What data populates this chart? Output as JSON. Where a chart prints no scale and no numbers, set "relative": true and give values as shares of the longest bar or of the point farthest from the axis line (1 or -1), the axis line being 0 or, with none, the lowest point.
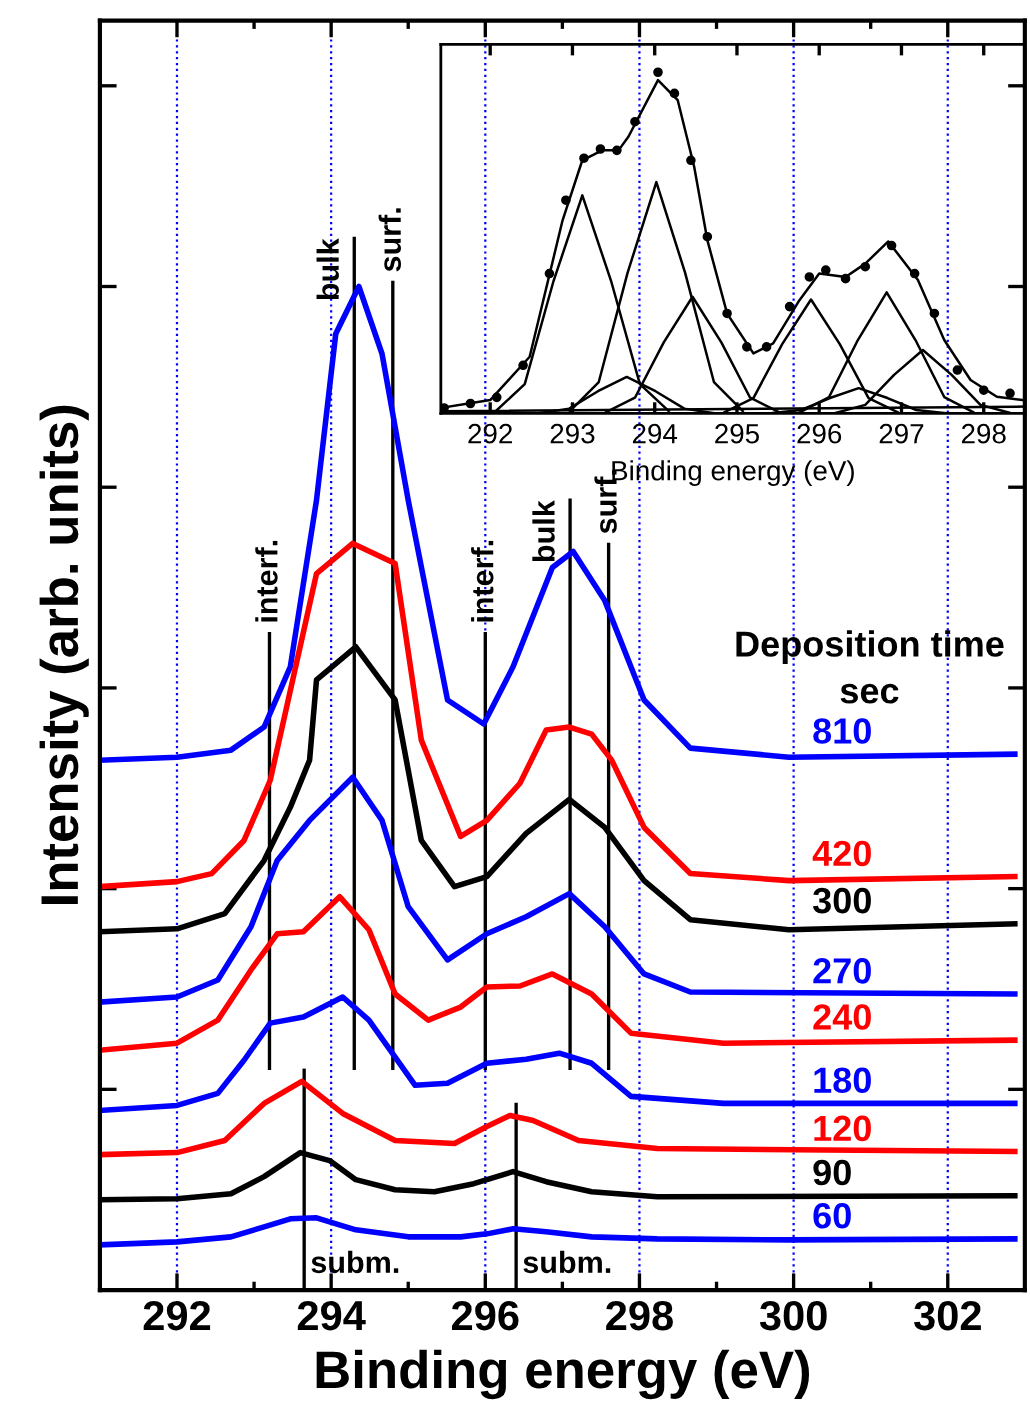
{
  "chart_data": [
    {
      "type": "line",
      "relative": true,
      "xlabel": "Binding energy (eV)",
      "ylabel": "Intensity (arb. units)",
      "xlim": [
        291,
        303
      ],
      "xticks": [
        292,
        {
          "value": 293,
          "label": null
        },
        294,
        {
          "value": 295,
          "label": null
        },
        296,
        {
          "value": 297,
          "label": null
        },
        298,
        {
          "value": 299,
          "label": null
        },
        300,
        {
          "value": 301,
          "label": null
        },
        302
      ],
      "grid": "x",
      "tick_labels": "x",
      "annotations": [
        "Deposition time\nsec"
      ],
      "ref_lines": [
        {
          "axis": "x",
          "value": 293.2,
          "label": "interf.",
          "color": "#000000"
        },
        {
          "axis": "x",
          "value": 294.3,
          "label": "bulk",
          "color": "#000000"
        },
        {
          "axis": "x",
          "value": 294.8,
          "label": "surf.",
          "color": "#000000"
        },
        {
          "axis": "x",
          "value": 296.0,
          "label": "interf.",
          "color": "#000000"
        },
        {
          "axis": "x",
          "value": 297.1,
          "label": "bulk",
          "color": "#000000"
        },
        {
          "axis": "x",
          "value": 297.6,
          "label": "surf.",
          "color": "#000000"
        },
        {
          "axis": "x",
          "value": 293.65,
          "label": "subm.",
          "color": "#000000"
        },
        {
          "axis": "x",
          "value": 296.4,
          "label": "subm.",
          "color": "#000000"
        }
      ],
      "series": [
        {
          "name": "810",
          "color": "#0000ff",
          "x": [
            291.0,
            292.0,
            292.7,
            293.13,
            293.47,
            293.81,
            294.06,
            294.36,
            294.66,
            295.0,
            295.51,
            295.98,
            296.36,
            296.87,
            297.14,
            297.55,
            298.06,
            298.66,
            299.94,
            302.87
          ],
          "values": [
            0.528,
            0.531,
            0.538,
            0.561,
            0.621,
            0.787,
            0.953,
            1.0,
            0.933,
            0.787,
            0.588,
            0.564,
            0.621,
            0.72,
            0.736,
            0.687,
            0.588,
            0.54,
            0.531,
            0.534
          ]
        },
        {
          "name": "420",
          "color": "#ff0000",
          "x": [
            291.0,
            292.0,
            292.45,
            292.87,
            293.21,
            293.81,
            294.28,
            294.83,
            295.17,
            295.68,
            296.02,
            296.45,
            296.79,
            297.09,
            297.38,
            297.64,
            298.06,
            298.66,
            299.94,
            302.87
          ],
          "values": [
            0.402,
            0.407,
            0.415,
            0.448,
            0.508,
            0.714,
            0.744,
            0.724,
            0.548,
            0.452,
            0.468,
            0.505,
            0.558,
            0.561,
            0.554,
            0.528,
            0.461,
            0.415,
            0.408,
            0.412
          ]
        },
        {
          "name": "300",
          "color": "#000000",
          "x": [
            291.0,
            292.0,
            292.62,
            293.13,
            293.47,
            293.72,
            293.81,
            294.32,
            294.83,
            295.17,
            295.6,
            296.02,
            296.53,
            297.09,
            297.55,
            298.06,
            298.66,
            299.94,
            302.87
          ],
          "values": [
            0.357,
            0.36,
            0.375,
            0.428,
            0.481,
            0.528,
            0.608,
            0.641,
            0.588,
            0.448,
            0.402,
            0.412,
            0.455,
            0.489,
            0.461,
            0.408,
            0.369,
            0.359,
            0.365
          ]
        },
        {
          "name": "270",
          "color": "#0000ff",
          "x": [
            291.0,
            292.0,
            292.53,
            292.96,
            293.3,
            293.72,
            294.28,
            294.66,
            295.0,
            295.51,
            296.02,
            296.53,
            297.09,
            297.55,
            298.06,
            298.66,
            302.87
          ],
          "values": [
            0.287,
            0.292,
            0.309,
            0.362,
            0.428,
            0.468,
            0.511,
            0.468,
            0.382,
            0.329,
            0.355,
            0.372,
            0.395,
            0.362,
            0.315,
            0.297,
            0.295
          ]
        },
        {
          "name": "240",
          "color": "#ff0000",
          "x": [
            291.0,
            292.0,
            292.53,
            292.96,
            293.3,
            293.64,
            294.11,
            294.49,
            294.83,
            295.26,
            295.68,
            296.02,
            296.45,
            296.87,
            297.38,
            297.89,
            299.09,
            302.87
          ],
          "values": [
            0.239,
            0.246,
            0.269,
            0.319,
            0.355,
            0.357,
            0.392,
            0.359,
            0.295,
            0.269,
            0.282,
            0.302,
            0.303,
            0.315,
            0.295,
            0.256,
            0.246,
            0.249
          ]
        },
        {
          "name": "180",
          "color": "#0000ff",
          "x": [
            291.0,
            292.0,
            292.53,
            292.87,
            293.21,
            293.64,
            294.15,
            294.49,
            295.09,
            295.51,
            296.02,
            296.53,
            296.96,
            297.38,
            297.89,
            299.09,
            302.87
          ],
          "values": [
            0.179,
            0.184,
            0.196,
            0.229,
            0.266,
            0.272,
            0.292,
            0.269,
            0.204,
            0.206,
            0.226,
            0.23,
            0.236,
            0.226,
            0.193,
            0.186,
            0.186
          ]
        },
        {
          "name": "120",
          "color": "#ff0000",
          "x": [
            291.0,
            292.0,
            292.62,
            293.13,
            293.62,
            294.15,
            294.83,
            295.6,
            296.02,
            296.32,
            296.62,
            297.21,
            298.23,
            302.87
          ],
          "values": [
            0.135,
            0.137,
            0.149,
            0.186,
            0.208,
            0.176,
            0.149,
            0.146,
            0.163,
            0.174,
            0.169,
            0.149,
            0.141,
            0.138
          ]
        },
        {
          "name": "90",
          "color": "#000000",
          "x": [
            291.0,
            292.0,
            292.7,
            293.13,
            293.6,
            293.98,
            294.32,
            294.83,
            295.34,
            295.85,
            296.36,
            296.79,
            297.38,
            298.23,
            302.87
          ],
          "values": [
            0.09,
            0.091,
            0.096,
            0.113,
            0.137,
            0.129,
            0.11,
            0.1,
            0.098,
            0.106,
            0.118,
            0.108,
            0.098,
            0.093,
            0.094
          ]
        },
        {
          "name": "60",
          "color": "#0000ff",
          "x": [
            291.0,
            292.0,
            292.7,
            293.13,
            293.47,
            293.81,
            294.32,
            295.0,
            295.68,
            296.02,
            296.36,
            296.79,
            297.38,
            298.23,
            299.94,
            302.87
          ],
          "values": [
            0.045,
            0.048,
            0.053,
            0.063,
            0.071,
            0.072,
            0.06,
            0.053,
            0.053,
            0.056,
            0.061,
            0.058,
            0.053,
            0.051,
            0.05,
            0.051
          ]
        }
      ]
    },
    {
      "type": "line",
      "relative": true,
      "xlabel": "Binding energy (eV)",
      "xlim": [
        291.4,
        298.5
      ],
      "xticks": [
        292,
        293,
        294,
        295,
        296,
        297,
        298
      ],
      "tick_labels": "x",
      "series": [
        {
          "type": "scatter",
          "marker": "circle",
          "color": "#000000",
          "x": [
            291.44,
            291.76,
            292.08,
            292.4,
            292.72,
            292.92,
            293.14,
            293.34,
            293.54,
            293.76,
            294.04,
            294.24,
            294.44,
            294.64,
            294.88,
            295.12,
            295.36,
            295.64,
            295.88,
            296.08,
            296.32,
            296.56,
            296.88,
            297.16,
            297.4,
            297.68,
            298.0,
            298.32
          ],
          "values": [
            0.016,
            0.029,
            0.047,
            0.141,
            0.41,
            0.625,
            0.748,
            0.775,
            0.771,
            0.855,
            1.0,
            0.938,
            0.742,
            0.518,
            0.293,
            0.195,
            0.195,
            0.313,
            0.4,
            0.42,
            0.395,
            0.43,
            0.492,
            0.41,
            0.293,
            0.127,
            0.068,
            0.059
          ]
        },
        {
          "color": "#000000",
          "x": [
            291.4,
            292.0,
            292.48,
            292.88,
            293.12,
            293.36,
            293.56,
            293.68,
            294.04,
            294.28,
            294.48,
            294.64,
            294.88,
            295.2,
            295.44,
            295.76,
            296.0,
            296.32,
            296.56,
            296.84,
            297.2,
            297.52,
            297.84,
            298.16,
            298.48
          ],
          "values": [
            0.016,
            0.039,
            0.166,
            0.566,
            0.742,
            0.771,
            0.771,
            0.811,
            0.977,
            0.918,
            0.723,
            0.508,
            0.293,
            0.176,
            0.205,
            0.332,
            0.41,
            0.4,
            0.439,
            0.504,
            0.391,
            0.215,
            0.098,
            0.049,
            0.039
          ]
        },
        {
          "color": "#000000",
          "x": [
            292.07,
            292.42,
            292.77,
            293.12,
            293.47,
            293.82,
            294.17
          ],
          "values": [
            0.007,
            0.086,
            0.388,
            0.639,
            0.388,
            0.086,
            0.007
          ]
        },
        {
          "color": "#000000",
          "x": [
            292.61,
            292.96,
            293.31,
            293.66,
            294.01,
            294.36,
            294.71
          ],
          "values": [
            0.001,
            0.014,
            0.065,
            0.107,
            0.065,
            0.014,
            0.001
          ]
        },
        {
          "color": "#000000",
          "x": [
            292.97,
            293.32,
            293.67,
            294.02,
            294.37,
            294.72,
            295.07
          ],
          "values": [
            0.007,
            0.092,
            0.412,
            0.678,
            0.412,
            0.092,
            0.007
          ]
        },
        {
          "color": "#000000",
          "x": [
            293.41,
            293.76,
            294.11,
            294.46,
            294.81,
            295.16,
            295.51
          ],
          "values": [
            0.004,
            0.046,
            0.208,
            0.342,
            0.208,
            0.046,
            0.004
          ]
        },
        {
          "color": "#000000",
          "x": [
            294.85,
            295.2,
            295.55,
            295.9,
            296.25,
            296.6,
            296.95
          ],
          "values": [
            0.004,
            0.045,
            0.203,
            0.334,
            0.203,
            0.045,
            0.004
          ]
        },
        {
          "color": "#000000",
          "x": [
            295.43,
            295.78,
            296.13,
            296.48,
            296.83,
            297.18,
            297.53
          ],
          "values": [
            0.001,
            0.01,
            0.045,
            0.074,
            0.045,
            0.01,
            0.001
          ]
        },
        {
          "color": "#000000",
          "x": [
            295.77,
            296.12,
            296.47,
            296.82,
            297.17,
            297.52,
            297.87
          ],
          "values": [
            0.004,
            0.048,
            0.215,
            0.355,
            0.215,
            0.048,
            0.004
          ]
        },
        {
          "color": "#000000",
          "x": [
            296.21,
            296.56,
            296.91,
            297.26,
            297.61,
            297.96,
            298.31
          ],
          "values": [
            0.002,
            0.025,
            0.113,
            0.186,
            0.113,
            0.025,
            0.002
          ]
        },
        {
          "color": "#000000",
          "x": [
            291.4,
            298.5
          ],
          "values": [
            0.006,
            0.02
          ]
        }
      ]
    }
  ]
}
